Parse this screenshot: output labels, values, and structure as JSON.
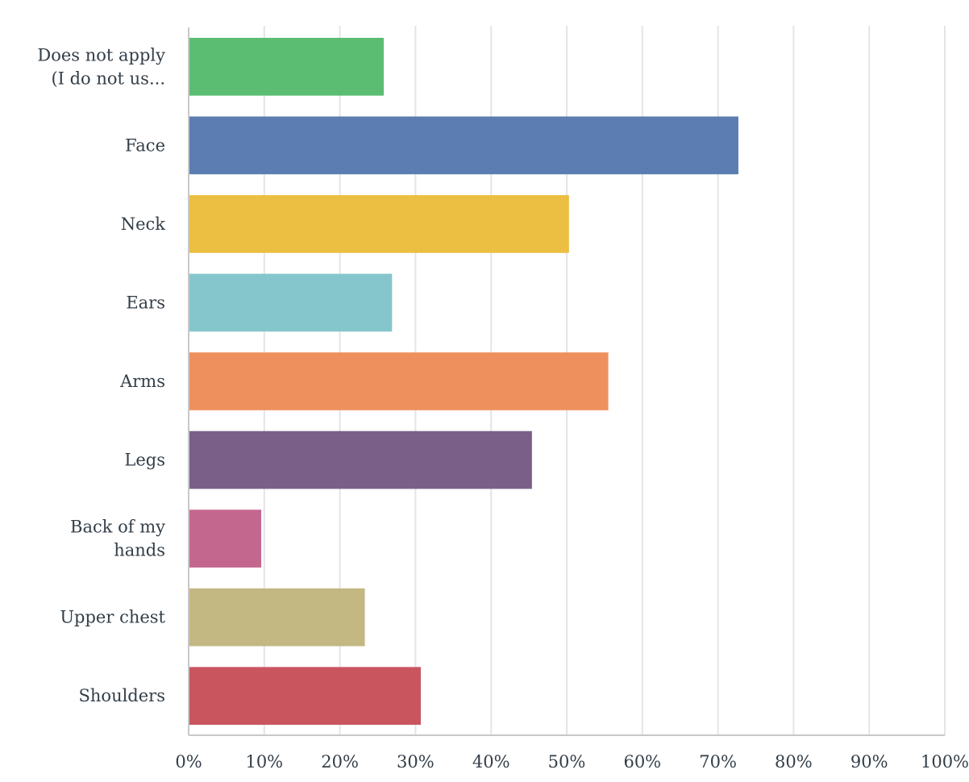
{
  "chart_data": {
    "type": "bar",
    "orientation": "horizontal",
    "categories": [
      [
        "Does not apply",
        "(I do not us..."
      ],
      [
        "Face"
      ],
      [
        "Neck"
      ],
      [
        "Ears"
      ],
      [
        "Arms"
      ],
      [
        "Legs"
      ],
      [
        "Back of my",
        "hands"
      ],
      [
        "Upper chest"
      ],
      [
        "Shoulders"
      ]
    ],
    "values": [
      25.8,
      72.7,
      50.3,
      26.9,
      55.5,
      45.4,
      9.6,
      23.3,
      30.7
    ],
    "colors": [
      "#5bbd72",
      "#5b7db1",
      "#ecbf42",
      "#85c6cc",
      "#ee905e",
      "#7a6089",
      "#c4678f",
      "#c3b782",
      "#c9565f"
    ],
    "xlim": [
      0,
      100
    ],
    "x_ticks": [
      "0%",
      "10%",
      "20%",
      "30%",
      "40%",
      "50%",
      "60%",
      "70%",
      "80%",
      "90%",
      "100%"
    ],
    "grid": true,
    "title": "",
    "xlabel": "",
    "ylabel": ""
  }
}
